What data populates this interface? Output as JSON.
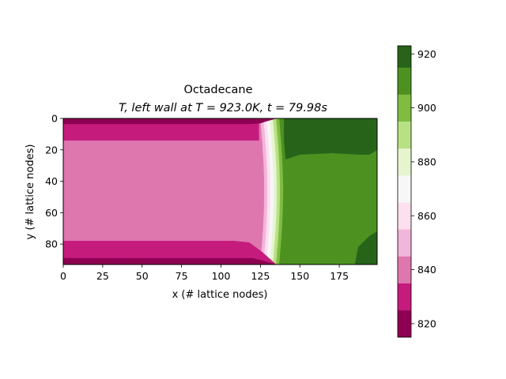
{
  "chart_data": {
    "type": "heatmap",
    "title": "Octadecane",
    "subtitle": "T, left wall at T = 923.0K, t = 79.98s",
    "xlabel": "x (# lattice nodes)",
    "ylabel": "y (# lattice nodes)",
    "xlim": [
      0,
      199
    ],
    "ylim": [
      93,
      0
    ],
    "xticks": [
      0,
      25,
      50,
      75,
      100,
      125,
      150,
      175
    ],
    "yticks": [
      0,
      20,
      40,
      60,
      80
    ],
    "colormap": "PiYG",
    "colorbar": {
      "range": [
        815,
        923
      ],
      "ticks": [
        820,
        840,
        860,
        880,
        900,
        920
      ],
      "levels": [
        815,
        825,
        835,
        845,
        855,
        865,
        875,
        885,
        895,
        905,
        915,
        923
      ],
      "colors": [
        "#8e0152",
        "#c51b7d",
        "#de77ae",
        "#f1b6da",
        "#fde0ef",
        "#f7f7f7",
        "#e6f5d0",
        "#b8e186",
        "#7fbc41",
        "#4d9221",
        "#276419"
      ]
    }
  }
}
